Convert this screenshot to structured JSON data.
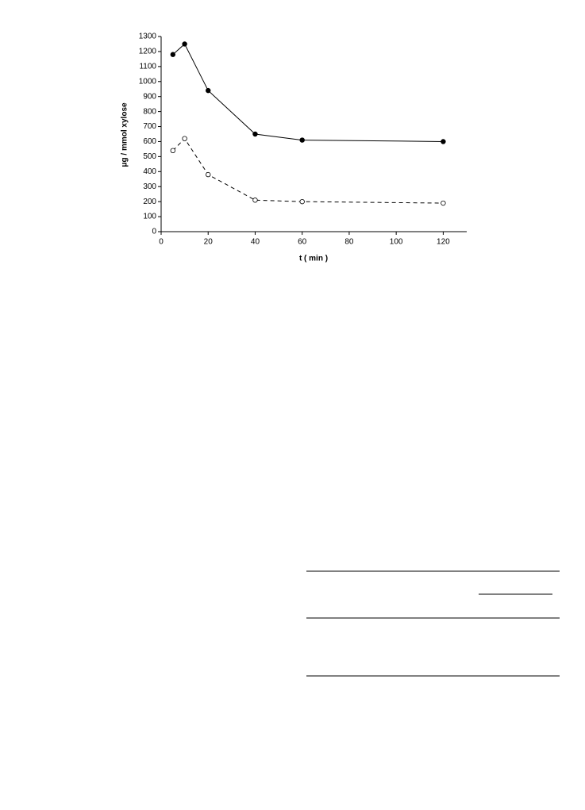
{
  "chart_data": {
    "type": "line",
    "y_label": "μg / mmol xylose",
    "x_label": "t ( min )",
    "xlim": [
      0,
      130
    ],
    "xticks": [
      0,
      20,
      40,
      60,
      80,
      100,
      120
    ],
    "ylim": [
      0,
      1300
    ],
    "yticks": [
      0,
      100,
      200,
      300,
      400,
      500,
      600,
      700,
      800,
      900,
      1000,
      1100,
      1200,
      1300
    ],
    "x": [
      5,
      10,
      20,
      40,
      60,
      120
    ],
    "series": [
      {
        "color": "#000000",
        "line_style": "solid",
        "marker": "filled",
        "values": [
          1180,
          1250,
          940,
          650,
          610,
          600
        ]
      },
      {
        "color": "#000000",
        "line_style": "dashed",
        "marker": "open",
        "values": [
          540,
          620,
          380,
          210,
          200,
          190
        ]
      }
    ]
  }
}
